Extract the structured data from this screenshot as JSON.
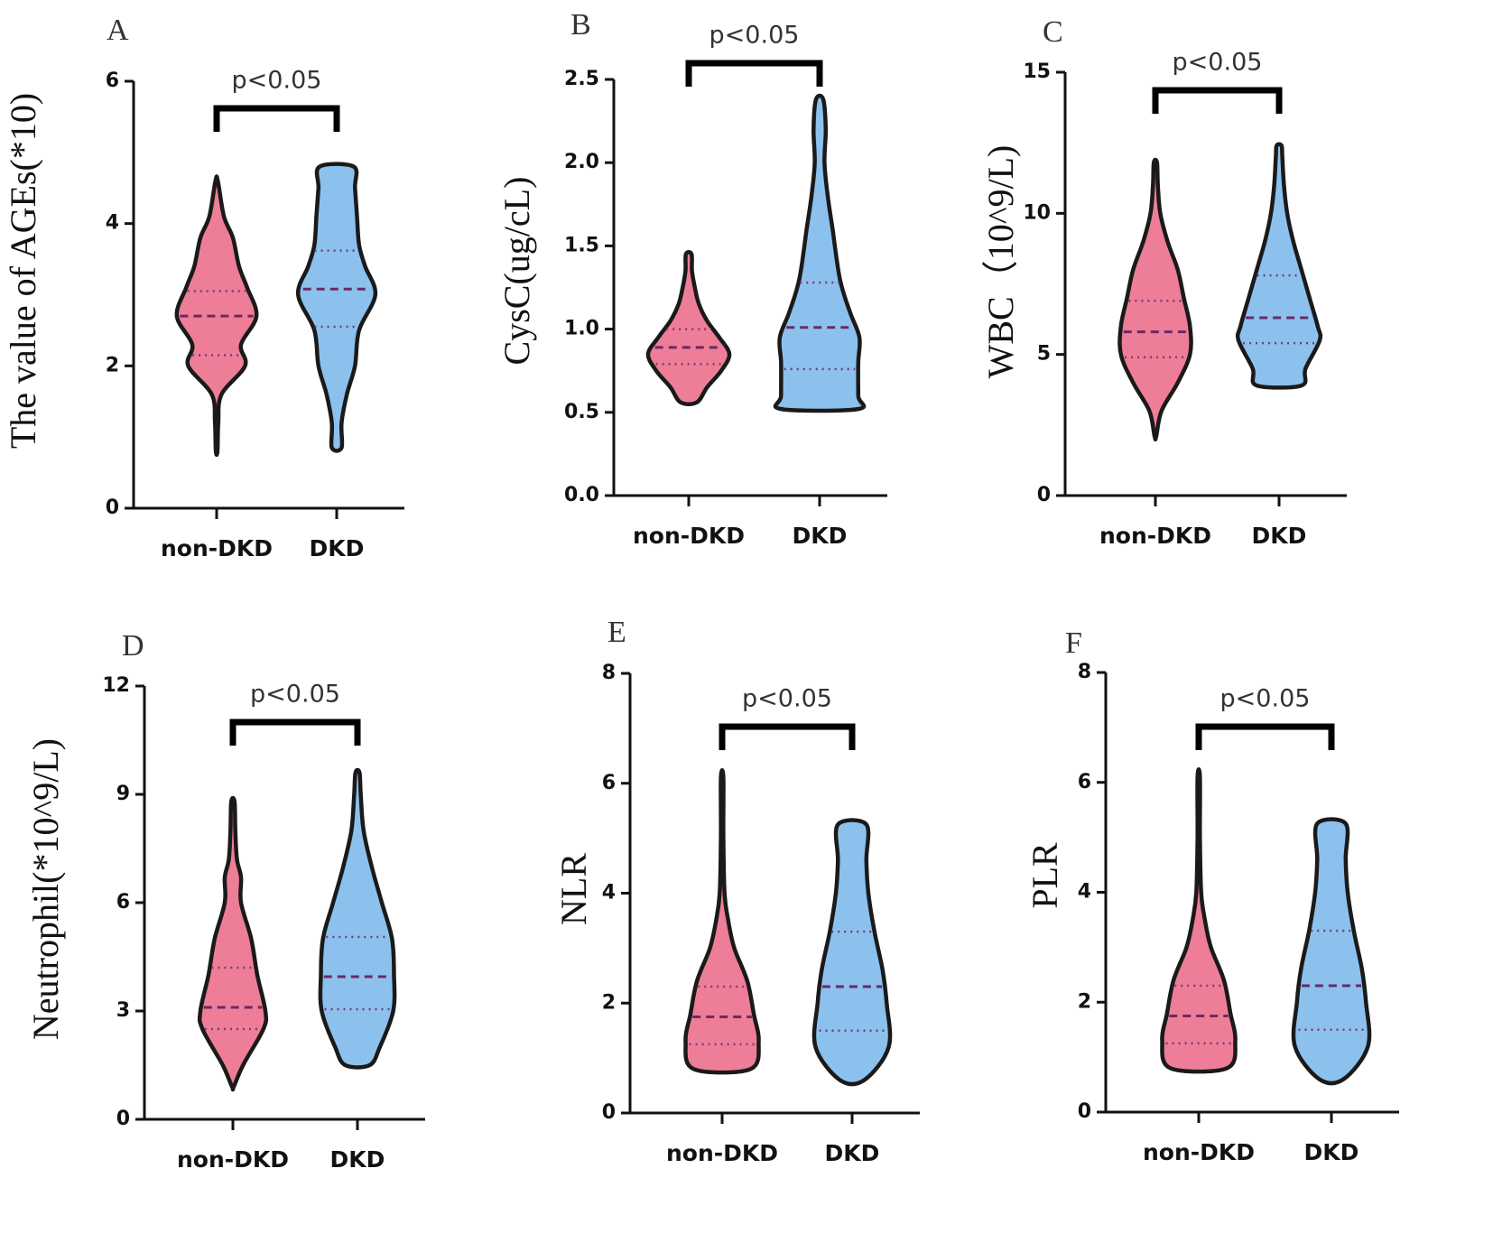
{
  "colors": {
    "non_dkd": "#EE7E97",
    "dkd": "#8CC1EE",
    "median_line": "#6a2a66",
    "quartile_line": "#7a3a7a"
  },
  "chart_data": [
    {
      "panel": "A",
      "type": "violin",
      "ylabel": "The value of AGEs(*10)",
      "ylim": [
        0,
        6
      ],
      "yticks": [
        0,
        2,
        4,
        6
      ],
      "ytick_labels": [
        "0",
        "2",
        "4",
        "6"
      ],
      "categories": [
        "non-DKD",
        "DKD"
      ],
      "annotation": "p<0.05",
      "series": [
        {
          "name": "non-DKD",
          "min": 0.8,
          "max": 4.6,
          "q1": 2.15,
          "median": 2.7,
          "q3": 3.05,
          "profile": [
            [
              0.8,
              0.02
            ],
            [
              1.2,
              0.04
            ],
            [
              1.6,
              0.12
            ],
            [
              2.0,
              0.7
            ],
            [
              2.3,
              0.6
            ],
            [
              2.7,
              0.98
            ],
            [
              3.1,
              0.75
            ],
            [
              3.4,
              0.55
            ],
            [
              3.8,
              0.4
            ],
            [
              4.1,
              0.18
            ],
            [
              4.6,
              0.03
            ]
          ]
        },
        {
          "name": "DKD",
          "min": 0.85,
          "max": 4.8,
          "q1": 2.55,
          "median": 3.08,
          "q3": 3.62,
          "profile": [
            [
              0.85,
              0.12
            ],
            [
              1.2,
              0.12
            ],
            [
              1.6,
              0.25
            ],
            [
              2.0,
              0.45
            ],
            [
              2.5,
              0.55
            ],
            [
              3.0,
              0.95
            ],
            [
              3.4,
              0.7
            ],
            [
              3.7,
              0.55
            ],
            [
              4.1,
              0.5
            ],
            [
              4.5,
              0.45
            ],
            [
              4.8,
              0.42
            ]
          ]
        }
      ]
    },
    {
      "panel": "B",
      "type": "violin",
      "ylabel": "CysC(ug/cL)",
      "ylim": [
        0,
        2.5
      ],
      "yticks": [
        0,
        0.5,
        1,
        1.5,
        2,
        2.5
      ],
      "ytick_labels": [
        "0.0",
        "0.5",
        "1.0",
        "1.5",
        "2.0",
        "2.5"
      ],
      "categories": [
        "non-DKD",
        "DKD"
      ],
      "annotation": "p<0.05",
      "series": [
        {
          "name": "non-DKD",
          "min": 0.56,
          "max": 1.45,
          "q1": 0.79,
          "median": 0.89,
          "q3": 1.0,
          "profile": [
            [
              0.56,
              0.2
            ],
            [
              0.65,
              0.45
            ],
            [
              0.75,
              0.8
            ],
            [
              0.85,
              1.0
            ],
            [
              0.95,
              0.75
            ],
            [
              1.05,
              0.45
            ],
            [
              1.15,
              0.25
            ],
            [
              1.25,
              0.15
            ],
            [
              1.35,
              0.08
            ],
            [
              1.45,
              0.07
            ]
          ]
        },
        {
          "name": "DKD",
          "min": 0.52,
          "max": 2.38,
          "q1": 0.76,
          "median": 1.01,
          "q3": 1.28,
          "profile": [
            [
              0.52,
              0.95
            ],
            [
              0.6,
              0.95
            ],
            [
              0.8,
              0.95
            ],
            [
              0.95,
              0.98
            ],
            [
              1.1,
              0.75
            ],
            [
              1.3,
              0.5
            ],
            [
              1.6,
              0.32
            ],
            [
              1.8,
              0.2
            ],
            [
              2.0,
              0.12
            ],
            [
              2.2,
              0.15
            ],
            [
              2.38,
              0.09
            ]
          ]
        }
      ]
    },
    {
      "panel": "C",
      "type": "violin",
      "ylabel": "WBC（10^9/L)",
      "ylim": [
        0,
        15
      ],
      "yticks": [
        0,
        5,
        10,
        15
      ],
      "ytick_labels": [
        "0",
        "5",
        "10",
        "15"
      ],
      "categories": [
        "non-DKD",
        "DKD"
      ],
      "annotation": "p<0.05",
      "series": [
        {
          "name": "non-DKD",
          "min": 2.1,
          "max": 11.8,
          "q1": 4.9,
          "median": 5.8,
          "q3": 6.9,
          "profile": [
            [
              2.1,
              0.02
            ],
            [
              3.0,
              0.15
            ],
            [
              4.0,
              0.55
            ],
            [
              5.0,
              0.85
            ],
            [
              6.0,
              0.85
            ],
            [
              7.0,
              0.7
            ],
            [
              8.0,
              0.55
            ],
            [
              9.0,
              0.3
            ],
            [
              10.0,
              0.12
            ],
            [
              11.0,
              0.06
            ],
            [
              11.8,
              0.04
            ]
          ]
        },
        {
          "name": "DKD",
          "min": 3.9,
          "max": 12.4,
          "q1": 5.4,
          "median": 6.3,
          "q3": 7.8,
          "profile": [
            [
              3.9,
              0.55
            ],
            [
              4.5,
              0.65
            ],
            [
              5.5,
              1.0
            ],
            [
              6.0,
              0.95
            ],
            [
              7.0,
              0.75
            ],
            [
              8.0,
              0.55
            ],
            [
              9.0,
              0.35
            ],
            [
              10.0,
              0.2
            ],
            [
              11.0,
              0.12
            ],
            [
              12.0,
              0.08
            ],
            [
              12.4,
              0.06
            ]
          ]
        }
      ]
    },
    {
      "panel": "D",
      "type": "violin",
      "ylabel": "Neutrophil(*10^9/L)",
      "ylim": [
        0,
        12
      ],
      "yticks": [
        0,
        3,
        6,
        9,
        12
      ],
      "ytick_labels": [
        "0",
        "3",
        "6",
        "9",
        "12"
      ],
      "categories": [
        "non-DKD",
        "DKD"
      ],
      "annotation": "p<0.05",
      "series": [
        {
          "name": "non-DKD",
          "min": 0.9,
          "max": 8.8,
          "q1": 2.5,
          "median": 3.1,
          "q3": 4.2,
          "profile": [
            [
              0.9,
              0.02
            ],
            [
              1.5,
              0.25
            ],
            [
              2.5,
              0.75
            ],
            [
              3.0,
              0.8
            ],
            [
              4.0,
              0.6
            ],
            [
              5.0,
              0.45
            ],
            [
              6.0,
              0.2
            ],
            [
              6.7,
              0.2
            ],
            [
              7.2,
              0.1
            ],
            [
              8.0,
              0.06
            ],
            [
              8.8,
              0.04
            ]
          ]
        },
        {
          "name": "DKD",
          "min": 1.5,
          "max": 9.6,
          "q1": 3.05,
          "median": 3.95,
          "q3": 5.05,
          "profile": [
            [
              1.5,
              0.3
            ],
            [
              2.0,
              0.55
            ],
            [
              3.0,
              0.88
            ],
            [
              4.0,
              0.9
            ],
            [
              5.0,
              0.85
            ],
            [
              6.0,
              0.6
            ],
            [
              7.0,
              0.35
            ],
            [
              8.0,
              0.15
            ],
            [
              9.0,
              0.08
            ],
            [
              9.6,
              0.05
            ]
          ]
        }
      ]
    },
    {
      "panel": "E",
      "type": "violin",
      "ylabel": "NLR",
      "ylim": [
        0,
        8
      ],
      "yticks": [
        0,
        2,
        4,
        6,
        8
      ],
      "ytick_labels": [
        "0",
        "2",
        "4",
        "6",
        "8"
      ],
      "categories": [
        "non-DKD",
        "DKD"
      ],
      "annotation": "p<0.05",
      "series": [
        {
          "name": "non-DKD",
          "min": 0.8,
          "max": 6.1,
          "q1": 1.25,
          "median": 1.75,
          "q3": 2.3,
          "profile": [
            [
              0.8,
              0.7
            ],
            [
              1.3,
              0.9
            ],
            [
              1.8,
              0.78
            ],
            [
              2.4,
              0.62
            ],
            [
              3.0,
              0.3
            ],
            [
              3.5,
              0.15
            ],
            [
              4.0,
              0.06
            ],
            [
              5.0,
              0.03
            ],
            [
              6.1,
              0.03
            ]
          ]
        },
        {
          "name": "DKD",
          "min": 0.6,
          "max": 5.25,
          "q1": 1.5,
          "median": 2.3,
          "q3": 3.3,
          "profile": [
            [
              0.6,
              0.3
            ],
            [
              1.2,
              0.9
            ],
            [
              2.0,
              0.85
            ],
            [
              2.6,
              0.75
            ],
            [
              3.3,
              0.55
            ],
            [
              4.0,
              0.4
            ],
            [
              4.6,
              0.35
            ],
            [
              5.25,
              0.35
            ]
          ]
        }
      ]
    },
    {
      "panel": "F",
      "type": "violin",
      "ylabel": "PLR",
      "ylim": [
        0,
        8
      ],
      "yticks": [
        0,
        2,
        4,
        6,
        8
      ],
      "ytick_labels": [
        "0",
        "2",
        "4",
        "6",
        "8"
      ],
      "categories": [
        "non-DKD",
        "DKD"
      ],
      "annotation": "p<0.05",
      "series": [
        {
          "name": "non-DKD",
          "min": 0.8,
          "max": 6.1,
          "q1": 1.25,
          "median": 1.75,
          "q3": 2.3,
          "profile": [
            [
              0.8,
              0.7
            ],
            [
              1.3,
              0.9
            ],
            [
              1.8,
              0.78
            ],
            [
              2.4,
              0.62
            ],
            [
              3.0,
              0.3
            ],
            [
              3.5,
              0.15
            ],
            [
              4.0,
              0.06
            ],
            [
              5.0,
              0.03
            ],
            [
              6.1,
              0.03
            ]
          ]
        },
        {
          "name": "DKD",
          "min": 0.6,
          "max": 5.25,
          "q1": 1.5,
          "median": 2.3,
          "q3": 3.3,
          "profile": [
            [
              0.6,
              0.3
            ],
            [
              1.2,
              0.9
            ],
            [
              2.0,
              0.85
            ],
            [
              2.6,
              0.75
            ],
            [
              3.3,
              0.55
            ],
            [
              4.0,
              0.4
            ],
            [
              4.6,
              0.35
            ],
            [
              5.25,
              0.35
            ]
          ]
        }
      ]
    }
  ]
}
